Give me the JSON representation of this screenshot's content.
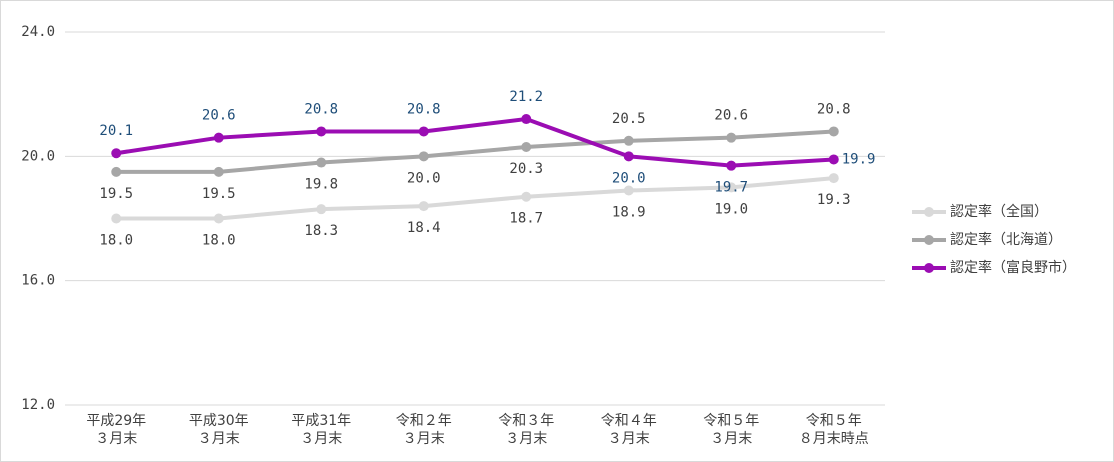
{
  "chart_data": {
    "type": "line",
    "categories": [
      [
        "平成29年",
        "３月末"
      ],
      [
        "平成30年",
        "３月末"
      ],
      [
        "平成31年",
        "３月末"
      ],
      [
        "令和２年",
        "３月末"
      ],
      [
        "令和３年",
        "３月末"
      ],
      [
        "令和４年",
        "３月末"
      ],
      [
        "令和５年",
        "３月末"
      ],
      [
        "令和５年",
        "８月末時点"
      ]
    ],
    "series": [
      {
        "name": "認定率（全国）",
        "color": "#d9d9d9",
        "values": [
          18.0,
          18.0,
          18.3,
          18.4,
          18.7,
          18.9,
          19.0,
          19.3
        ],
        "value_labels": [
          "18.0",
          "18.0",
          "18.3",
          "18.4",
          "18.7",
          "18.9",
          "19.0",
          "19.3"
        ]
      },
      {
        "name": "認定率（北海道）",
        "color": "#a6a6a6",
        "values": [
          19.5,
          19.5,
          19.8,
          20.0,
          20.3,
          20.5,
          20.6,
          20.8
        ],
        "value_labels": [
          "19.5",
          "19.5",
          "19.8",
          "20.0",
          "20.3",
          "20.5",
          "20.6",
          "20.8"
        ]
      },
      {
        "name": "認定率（富良野市）",
        "color": "#9b0db3",
        "values": [
          20.1,
          20.6,
          20.8,
          20.8,
          21.2,
          20.0,
          19.7,
          19.9
        ],
        "value_labels": [
          "20.1",
          "20.6",
          "20.8",
          "20.8",
          "21.2",
          "20.0",
          "19.7",
          "19.9"
        ]
      }
    ],
    "ylim": [
      12,
      24
    ],
    "yticks": [
      {
        "value": 12,
        "label": "12.0"
      },
      {
        "value": 16,
        "label": "16.0"
      },
      {
        "value": 20,
        "label": "20.0"
      },
      {
        "value": 24,
        "label": "24.0"
      }
    ],
    "grid": true,
    "legend": "right"
  }
}
